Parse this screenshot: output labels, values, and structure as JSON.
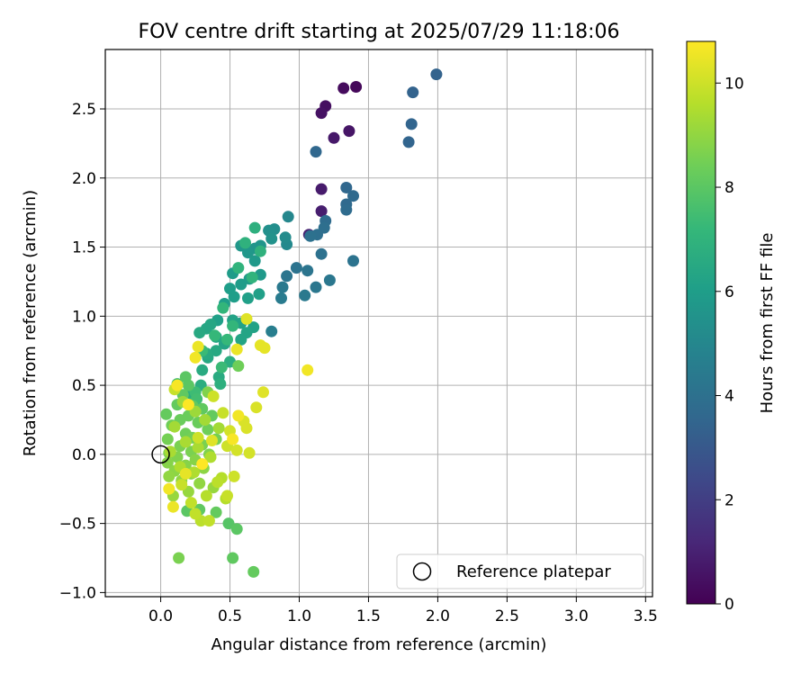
{
  "chart_data": {
    "type": "scatter",
    "title": "FOV centre drift starting at 2025/07/29 11:18:06",
    "xlabel": "Angular distance from reference (arcmin)",
    "ylabel": "Rotation from reference (arcmin)",
    "xlim": [
      -0.4,
      3.55
    ],
    "ylim": [
      -1.03,
      2.93
    ],
    "xticks": [
      0.0,
      0.5,
      1.0,
      1.5,
      2.0,
      2.5,
      3.0,
      3.5
    ],
    "xtick_labels": [
      "0.0",
      "0.5",
      "1.0",
      "1.5",
      "2.0",
      "2.5",
      "3.0",
      "3.5"
    ],
    "yticks": [
      -1.0,
      -0.5,
      0.0,
      0.5,
      1.0,
      1.5,
      2.0,
      2.5
    ],
    "ytick_labels": [
      "−1.0",
      "−0.5",
      "0.0",
      "0.5",
      "1.0",
      "1.5",
      "2.0",
      "2.5"
    ],
    "grid": true,
    "legend": {
      "position": "bottom-right",
      "entries": [
        "Reference platepar"
      ]
    },
    "reference_point": {
      "x": 0.0,
      "y": 0.0,
      "name": "Reference platepar"
    },
    "colorbar": {
      "label": "Hours from first FF file",
      "colormap": "viridis",
      "range": [
        0,
        10.8
      ],
      "ticks": [
        0,
        2,
        4,
        6,
        8,
        10
      ],
      "tick_labels": [
        "0",
        "2",
        "4",
        "6",
        "8",
        "10"
      ]
    },
    "points": [
      [
        1.41,
        2.66,
        0.2
      ],
      [
        1.32,
        2.65,
        0.3
      ],
      [
        1.19,
        2.52,
        0.4
      ],
      [
        1.16,
        2.47,
        0.5
      ],
      [
        1.36,
        2.34,
        0.6
      ],
      [
        1.25,
        2.29,
        0.7
      ],
      [
        1.16,
        1.92,
        0.8
      ],
      [
        1.16,
        1.76,
        0.9
      ],
      [
        1.07,
        1.59,
        1.0
      ],
      [
        1.99,
        2.75,
        3.4
      ],
      [
        1.82,
        2.62,
        3.4
      ],
      [
        1.81,
        2.39,
        3.5
      ],
      [
        1.79,
        2.26,
        3.5
      ],
      [
        1.12,
        2.19,
        3.6
      ],
      [
        1.34,
        1.93,
        3.6
      ],
      [
        1.39,
        1.87,
        3.7
      ],
      [
        1.34,
        1.81,
        3.7
      ],
      [
        1.34,
        1.77,
        3.8
      ],
      [
        1.19,
        1.69,
        3.8
      ],
      [
        1.18,
        1.64,
        3.9
      ],
      [
        1.13,
        1.59,
        3.9
      ],
      [
        1.08,
        1.58,
        4.0
      ],
      [
        1.16,
        1.45,
        4.0
      ],
      [
        1.39,
        1.4,
        4.1
      ],
      [
        0.98,
        1.35,
        4.1
      ],
      [
        1.06,
        1.33,
        4.2
      ],
      [
        0.91,
        1.29,
        4.2
      ],
      [
        1.22,
        1.26,
        4.3
      ],
      [
        1.12,
        1.21,
        4.3
      ],
      [
        0.88,
        1.21,
        4.4
      ],
      [
        1.04,
        1.15,
        4.4
      ],
      [
        0.87,
        1.13,
        4.5
      ],
      [
        0.8,
        0.89,
        4.6
      ],
      [
        0.92,
        1.72,
        5.0
      ],
      [
        0.91,
        1.52,
        5.1
      ],
      [
        0.9,
        1.57,
        5.2
      ],
      [
        0.82,
        1.63,
        5.3
      ],
      [
        0.78,
        1.62,
        5.4
      ],
      [
        0.8,
        1.56,
        5.5
      ],
      [
        0.72,
        1.51,
        5.6
      ],
      [
        0.68,
        1.49,
        5.6
      ],
      [
        0.63,
        1.46,
        5.7
      ],
      [
        0.58,
        1.51,
        5.7
      ],
      [
        0.68,
        1.4,
        5.8
      ],
      [
        0.72,
        1.3,
        5.8
      ],
      [
        0.64,
        1.27,
        5.9
      ],
      [
        0.58,
        1.23,
        5.9
      ],
      [
        0.52,
        1.31,
        5.9
      ],
      [
        0.5,
        1.2,
        6.0
      ],
      [
        0.53,
        1.14,
        6.0
      ],
      [
        0.46,
        1.09,
        6.0
      ],
      [
        0.63,
        1.13,
        6.1
      ],
      [
        0.71,
        1.16,
        6.1
      ],
      [
        0.41,
        0.97,
        6.1
      ],
      [
        0.52,
        0.97,
        6.2
      ],
      [
        0.58,
        0.95,
        6.2
      ],
      [
        0.67,
        0.92,
        6.2
      ],
      [
        0.62,
        0.88,
        6.3
      ],
      [
        0.58,
        0.83,
        6.3
      ],
      [
        0.46,
        0.8,
        6.3
      ],
      [
        0.4,
        0.85,
        6.4
      ],
      [
        0.36,
        0.94,
        6.4
      ],
      [
        0.33,
        0.91,
        6.4
      ],
      [
        0.28,
        0.88,
        6.5
      ],
      [
        0.4,
        0.75,
        6.5
      ],
      [
        0.34,
        0.7,
        6.5
      ],
      [
        0.42,
        0.56,
        6.6
      ],
      [
        0.3,
        0.61,
        6.6
      ],
      [
        0.33,
        0.73,
        6.6
      ],
      [
        0.29,
        0.5,
        6.7
      ],
      [
        0.22,
        0.44,
        6.7
      ],
      [
        0.5,
        0.67,
        6.7
      ],
      [
        0.43,
        0.51,
        6.8
      ],
      [
        0.68,
        1.64,
        6.8
      ],
      [
        0.61,
        1.53,
        6.9
      ],
      [
        0.72,
        1.47,
        6.9
      ],
      [
        0.56,
        1.35,
        7.0
      ],
      [
        0.66,
        1.28,
        7.0
      ],
      [
        0.45,
        1.06,
        7.1
      ],
      [
        0.52,
        0.93,
        7.1
      ],
      [
        0.39,
        0.86,
        7.2
      ],
      [
        0.48,
        0.83,
        7.2
      ],
      [
        0.3,
        0.75,
        7.3
      ],
      [
        0.44,
        0.63,
        7.3
      ],
      [
        0.25,
        0.45,
        7.4
      ],
      [
        0.12,
        0.51,
        7.5
      ],
      [
        0.26,
        0.4,
        7.5
      ],
      [
        0.18,
        0.56,
        8.0
      ],
      [
        0.2,
        0.5,
        8.0
      ],
      [
        0.16,
        0.43,
        8.1
      ],
      [
        0.23,
        0.35,
        8.1
      ],
      [
        0.3,
        0.33,
        8.1
      ],
      [
        0.37,
        0.28,
        8.2
      ],
      [
        0.12,
        0.36,
        8.2
      ],
      [
        0.04,
        0.29,
        8.2
      ],
      [
        0.2,
        0.28,
        8.3
      ],
      [
        0.14,
        0.25,
        8.3
      ],
      [
        0.27,
        0.23,
        8.3
      ],
      [
        0.08,
        0.21,
        8.4
      ],
      [
        0.34,
        0.18,
        8.4
      ],
      [
        0.18,
        0.15,
        8.4
      ],
      [
        0.23,
        0.12,
        8.5
      ],
      [
        0.05,
        0.11,
        8.5
      ],
      [
        0.4,
        0.11,
        8.5
      ],
      [
        0.3,
        0.07,
        8.6
      ],
      [
        0.14,
        0.06,
        8.6
      ],
      [
        0.22,
        0.02,
        8.6
      ],
      [
        0.06,
        0.01,
        8.7
      ],
      [
        0.35,
        0.0,
        8.7
      ],
      [
        0.12,
        -0.02,
        8.7
      ],
      [
        0.25,
        -0.04,
        8.8
      ],
      [
        0.05,
        -0.06,
        8.8
      ],
      [
        0.18,
        -0.08,
        8.8
      ],
      [
        0.31,
        -0.1,
        8.9
      ],
      [
        0.1,
        -0.12,
        8.9
      ],
      [
        0.22,
        -0.14,
        8.9
      ],
      [
        0.06,
        -0.16,
        9.0
      ],
      [
        0.15,
        -0.19,
        9.0
      ],
      [
        0.28,
        -0.21,
        9.0
      ],
      [
        0.38,
        -0.24,
        9.1
      ],
      [
        0.2,
        -0.27,
        9.1
      ],
      [
        0.09,
        -0.3,
        9.1
      ],
      [
        0.19,
        -0.41,
        8.0
      ],
      [
        0.28,
        -0.4,
        8.1
      ],
      [
        0.4,
        -0.42,
        8.2
      ],
      [
        0.49,
        -0.5,
        7.9
      ],
      [
        0.55,
        -0.54,
        8.0
      ],
      [
        0.52,
        -0.75,
        8.1
      ],
      [
        0.67,
        -0.85,
        8.2
      ],
      [
        0.13,
        -0.75,
        8.6
      ],
      [
        0.56,
        0.64,
        8.4
      ],
      [
        0.34,
        0.45,
        8.7
      ],
      [
        0.16,
        0.38,
        9.2
      ],
      [
        0.25,
        0.31,
        9.2
      ],
      [
        0.32,
        0.25,
        9.3
      ],
      [
        0.1,
        0.2,
        9.3
      ],
      [
        0.42,
        0.19,
        9.3
      ],
      [
        0.18,
        0.09,
        9.4
      ],
      [
        0.27,
        0.05,
        9.4
      ],
      [
        0.07,
        0.02,
        9.4
      ],
      [
        0.36,
        -0.02,
        9.5
      ],
      [
        0.14,
        -0.09,
        9.5
      ],
      [
        0.24,
        -0.13,
        9.5
      ],
      [
        0.44,
        -0.17,
        9.6
      ],
      [
        0.33,
        -0.3,
        9.6
      ],
      [
        0.47,
        -0.32,
        9.6
      ],
      [
        0.41,
        -0.2,
        9.7
      ],
      [
        0.29,
        -0.48,
        9.7
      ],
      [
        0.35,
        -0.48,
        9.8
      ],
      [
        0.22,
        -0.35,
        9.8
      ],
      [
        0.15,
        -0.22,
        9.9
      ],
      [
        0.48,
        -0.3,
        9.9
      ],
      [
        0.1,
        0.47,
        9.9
      ],
      [
        0.38,
        0.42,
        10.0
      ],
      [
        0.27,
        0.12,
        10.0
      ],
      [
        0.48,
        0.06,
        10.0
      ],
      [
        0.55,
        0.03,
        10.1
      ],
      [
        0.64,
        0.01,
        10.1
      ],
      [
        0.5,
        0.17,
        10.1
      ],
      [
        0.6,
        0.24,
        10.2
      ],
      [
        0.69,
        0.34,
        10.2
      ],
      [
        0.74,
        0.45,
        10.3
      ],
      [
        0.62,
        0.98,
        10.3
      ],
      [
        0.72,
        0.79,
        10.4
      ],
      [
        0.75,
        0.77,
        10.4
      ],
      [
        0.55,
        0.76,
        10.5
      ],
      [
        0.27,
        0.78,
        10.5
      ],
      [
        0.25,
        0.7,
        10.6
      ],
      [
        0.56,
        0.28,
        10.6
      ],
      [
        0.52,
        0.11,
        10.7
      ],
      [
        0.12,
        0.5,
        10.7
      ],
      [
        0.2,
        0.36,
        10.8
      ],
      [
        0.3,
        -0.07,
        10.8
      ],
      [
        0.06,
        -0.25,
        10.6
      ],
      [
        0.09,
        -0.38,
        10.5
      ],
      [
        0.18,
        -0.14,
        10.4
      ],
      [
        0.37,
        0.1,
        10.3
      ],
      [
        1.06,
        0.61,
        10.6
      ],
      [
        0.62,
        0.19,
        10.2
      ],
      [
        0.53,
        -0.16,
        10.0
      ],
      [
        0.25,
        -0.43,
        9.8
      ],
      [
        0.45,
        0.3,
        9.9
      ]
    ]
  }
}
